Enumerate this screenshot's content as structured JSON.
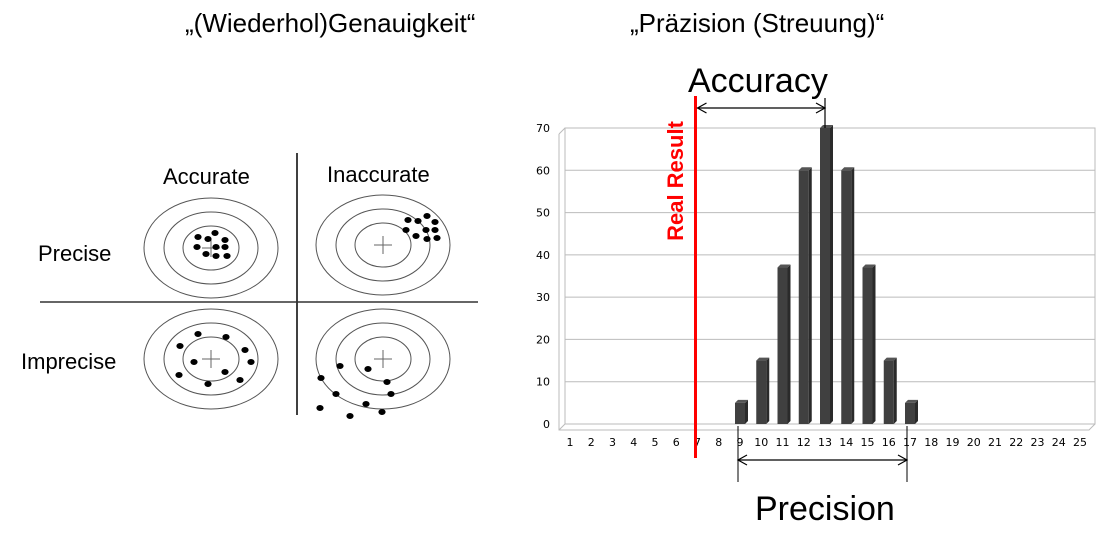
{
  "titles": {
    "left": "„(Wiederhol)Genauigkeit“",
    "right": "„Präzision (Streuung)“"
  },
  "targets": {
    "col_labels": [
      "Accurate",
      "Inaccurate"
    ],
    "row_labels": [
      "Precise",
      "Imprecise"
    ]
  },
  "chart_data": {
    "type": "bar",
    "categories": [
      "1",
      "2",
      "3",
      "4",
      "5",
      "6",
      "7",
      "8",
      "9",
      "10",
      "11",
      "12",
      "13",
      "14",
      "15",
      "16",
      "17",
      "18",
      "19",
      "20",
      "21",
      "22",
      "23",
      "24",
      "25"
    ],
    "values": [
      0,
      0,
      0,
      0,
      0,
      0,
      0,
      0,
      5,
      15,
      37,
      60,
      70,
      60,
      37,
      15,
      5,
      0,
      0,
      0,
      0,
      0,
      0,
      0,
      0
    ],
    "ylim": [
      0,
      70
    ],
    "yticks": [
      "0",
      "10",
      "20",
      "30",
      "40",
      "50",
      "60",
      "70"
    ],
    "grid": true,
    "bar_color": "#404040",
    "annotations": {
      "real_result": {
        "label": "Real Result",
        "x": 7,
        "color": "#ff0000"
      },
      "accuracy": {
        "label": "Accuracy",
        "from": 7,
        "to": 13
      },
      "precision": {
        "label": "Precision",
        "from": 9,
        "to": 17
      }
    }
  }
}
